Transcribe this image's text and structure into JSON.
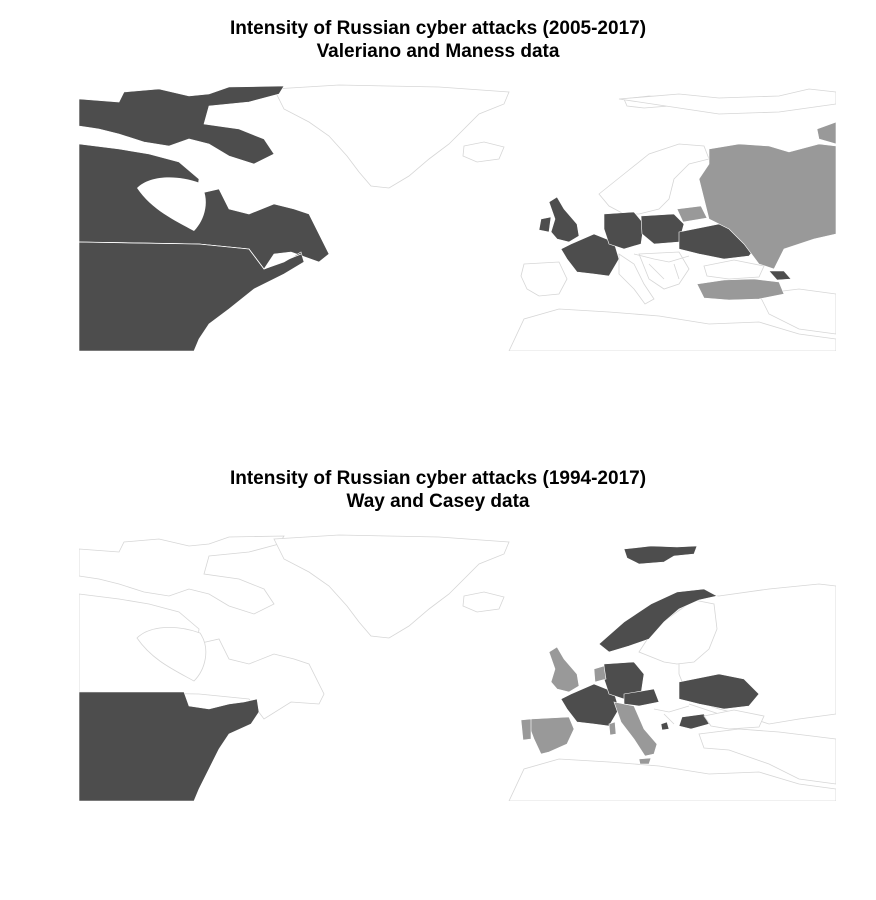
{
  "colors": {
    "background": "#ffffff",
    "high_intensity": "#4d4d4d",
    "low_intensity": "#999999",
    "border": "#d6d6d6"
  },
  "maps": [
    {
      "title_line1": "Intensity of Russian cyber attacks (2005-2017)",
      "title_line2": "Valeriano and Maness data",
      "high_intensity": [
        "canada",
        "united-states",
        "united-kingdom",
        "france",
        "germany",
        "poland",
        "ukraine",
        "georgia"
      ],
      "low_intensity": [
        "russia",
        "turkey",
        "estonia",
        "latvia",
        "lithuania"
      ]
    },
    {
      "title_line1": "Intensity of Russian cyber attacks (1994-2017)",
      "title_line2": "Way and Casey data",
      "high_intensity": [
        "united-states",
        "norway",
        "svalbard",
        "france",
        "germany",
        "czechia",
        "austria",
        "ukraine",
        "bulgaria",
        "montenegro"
      ],
      "low_intensity": [
        "united-kingdom",
        "spain",
        "italy",
        "netherlands"
      ]
    }
  ]
}
